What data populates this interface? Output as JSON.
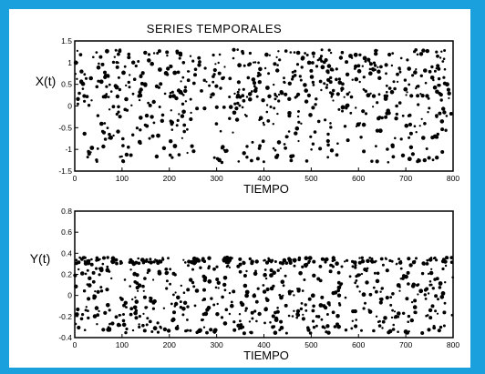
{
  "colors": {
    "background": "#1aa0dc",
    "panel": "#ffffff",
    "ink": "#000000"
  },
  "chart_data": [
    {
      "type": "scatter",
      "title": "SERIES TEMPORALES",
      "xlabel": "TIEMPO",
      "ylabel": "X(t)",
      "xlim": [
        0,
        800
      ],
      "ylim": [
        -1.5,
        1.5
      ],
      "xticks": [
        "0",
        "100",
        "200",
        "300",
        "400",
        "500",
        "600",
        "700",
        "800"
      ],
      "yticks": [
        "-1.5",
        "-1",
        "-0.5",
        "0",
        "0.5",
        "1",
        "1.5"
      ],
      "grid": false,
      "note": "approximately 700 dots per panel; individual values not readable at this resolution"
    },
    {
      "type": "scatter",
      "title": "",
      "xlabel": "TIEMPO",
      "ylabel": "Y(t)",
      "xlim": [
        0,
        800
      ],
      "ylim": [
        -0.4,
        0.8
      ],
      "xticks": [
        "0",
        "100",
        "200",
        "300",
        "400",
        "500",
        "600",
        "700",
        "800"
      ],
      "yticks": [
        "-0.4",
        "-0.2",
        "0",
        "0.2",
        "0.4",
        "0.6",
        "0.8"
      ],
      "grid": false
    }
  ]
}
